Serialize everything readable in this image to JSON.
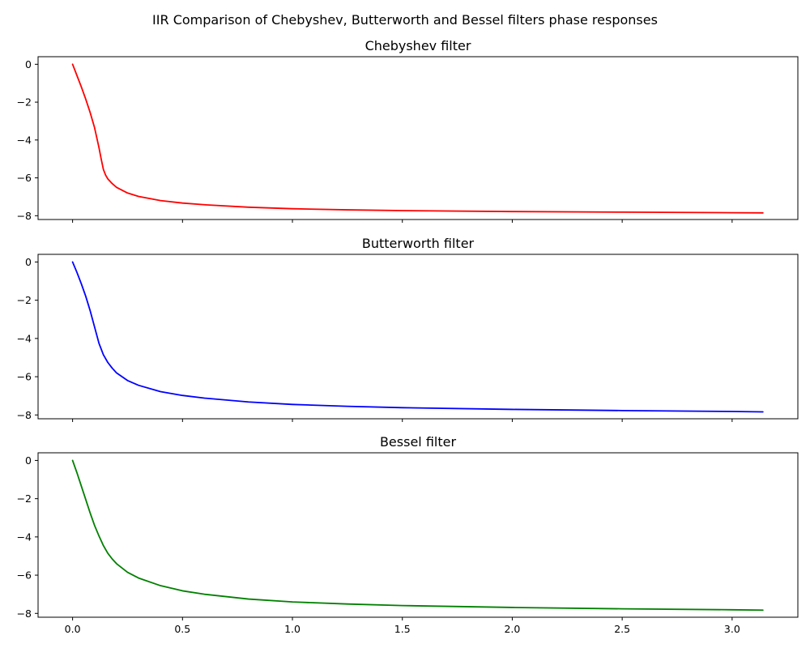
{
  "figure_title": "IIR Comparison of Chebyshev, Butterworth and Bessel filters phase responses",
  "chart_data": [
    {
      "type": "line",
      "title": "Chebyshev filter",
      "xlabel": "",
      "ylabel": "",
      "xlim": [
        -0.157,
        3.299
      ],
      "ylim": [
        -8.2,
        0.4
      ],
      "xticks": [
        0.0,
        0.5,
        1.0,
        1.5,
        2.0,
        2.5,
        3.0
      ],
      "xtick_labels": [],
      "yticks": [
        0,
        -2,
        -4,
        -6,
        -8
      ],
      "ytick_labels": [
        "0",
        "−2",
        "−4",
        "−6",
        "−8"
      ],
      "grid": false,
      "series": [
        {
          "color": "#ff0000",
          "x": [
            0.0,
            0.02,
            0.04,
            0.06,
            0.08,
            0.1,
            0.12,
            0.13,
            0.14,
            0.15,
            0.16,
            0.18,
            0.2,
            0.25,
            0.3,
            0.4,
            0.5,
            0.6,
            0.8,
            1.0,
            1.25,
            1.5,
            2.0,
            2.5,
            3.0,
            3.14
          ],
          "y": [
            0.0,
            -0.6,
            -1.2,
            -1.85,
            -2.55,
            -3.35,
            -4.4,
            -5.0,
            -5.55,
            -5.85,
            -6.05,
            -6.3,
            -6.5,
            -6.8,
            -6.98,
            -7.2,
            -7.33,
            -7.42,
            -7.55,
            -7.63,
            -7.69,
            -7.73,
            -7.78,
            -7.81,
            -7.84,
            -7.85
          ]
        }
      ]
    },
    {
      "type": "line",
      "title": "Butterworth filter",
      "xlabel": "",
      "ylabel": "",
      "xlim": [
        -0.157,
        3.299
      ],
      "ylim": [
        -8.2,
        0.4
      ],
      "xticks": [
        0.0,
        0.5,
        1.0,
        1.5,
        2.0,
        2.5,
        3.0
      ],
      "xtick_labels": [],
      "yticks": [
        0,
        -2,
        -4,
        -6,
        -8
      ],
      "ytick_labels": [
        "0",
        "−2",
        "−4",
        "−6",
        "−8"
      ],
      "grid": false,
      "series": [
        {
          "color": "#0000ff",
          "x": [
            0.0,
            0.02,
            0.04,
            0.06,
            0.08,
            0.1,
            0.12,
            0.14,
            0.16,
            0.18,
            0.2,
            0.25,
            0.3,
            0.4,
            0.5,
            0.6,
            0.8,
            1.0,
            1.25,
            1.5,
            2.0,
            2.5,
            3.0,
            3.14
          ],
          "y": [
            0.0,
            -0.55,
            -1.15,
            -1.8,
            -2.55,
            -3.4,
            -4.25,
            -4.85,
            -5.25,
            -5.55,
            -5.8,
            -6.2,
            -6.45,
            -6.78,
            -6.98,
            -7.12,
            -7.32,
            -7.45,
            -7.55,
            -7.62,
            -7.71,
            -7.77,
            -7.82,
            -7.84
          ]
        }
      ]
    },
    {
      "type": "line",
      "title": "Bessel filter",
      "xlabel": "",
      "ylabel": "",
      "xlim": [
        -0.157,
        3.299
      ],
      "ylim": [
        -8.2,
        0.4
      ],
      "xticks": [
        0.0,
        0.5,
        1.0,
        1.5,
        2.0,
        2.5,
        3.0
      ],
      "xtick_labels": [
        "0.0",
        "0.5",
        "1.0",
        "1.5",
        "2.0",
        "2.5",
        "3.0"
      ],
      "yticks": [
        0,
        -2,
        -4,
        -6,
        -8
      ],
      "ytick_labels": [
        "0",
        "−2",
        "−4",
        "−6",
        "−8"
      ],
      "grid": false,
      "series": [
        {
          "color": "#008000",
          "x": [
            0.0,
            0.02,
            0.04,
            0.06,
            0.08,
            0.1,
            0.12,
            0.14,
            0.16,
            0.18,
            0.2,
            0.25,
            0.3,
            0.4,
            0.5,
            0.6,
            0.8,
            1.0,
            1.25,
            1.5,
            2.0,
            2.5,
            3.0,
            3.14
          ],
          "y": [
            0.0,
            -0.65,
            -1.35,
            -2.05,
            -2.75,
            -3.4,
            -3.95,
            -4.45,
            -4.85,
            -5.15,
            -5.4,
            -5.85,
            -6.15,
            -6.55,
            -6.82,
            -7.0,
            -7.25,
            -7.4,
            -7.51,
            -7.59,
            -7.69,
            -7.76,
            -7.81,
            -7.83
          ]
        }
      ]
    }
  ]
}
